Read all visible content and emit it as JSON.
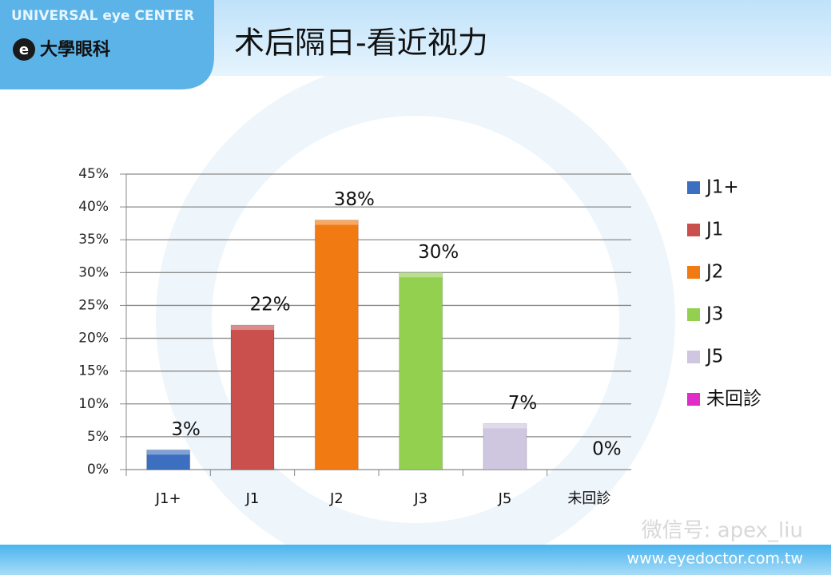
{
  "slide": {
    "brand": "UNIVERSAL eye CENTER",
    "logo_text": "大學眼科",
    "watermark": "微信号: apex_liu",
    "footer": "www.eyedoctor.com.tw"
  },
  "chart_data": {
    "type": "bar",
    "title": "术后隔日-看近视力",
    "categories": [
      "J1+",
      "J1",
      "J2",
      "J3",
      "J5",
      "未回診"
    ],
    "values": [
      3,
      22,
      38,
      30,
      7,
      0
    ],
    "value_labels": [
      "3%",
      "22%",
      "38%",
      "30%",
      "7%",
      "0%"
    ],
    "colors": [
      "#3c6fc0",
      "#c9504d",
      "#f27a12",
      "#94d050",
      "#cfc6e0",
      "#e02cc8"
    ],
    "ylim": [
      0,
      45
    ],
    "yticks": [
      {
        "value": 0,
        "label": "0%"
      },
      {
        "value": 5,
        "label": "5%"
      },
      {
        "value": 10,
        "label": "10%"
      },
      {
        "value": 15,
        "label": "15%"
      },
      {
        "value": 20,
        "label": "20%"
      },
      {
        "value": 25,
        "label": "25%"
      },
      {
        "value": 30,
        "label": "30%"
      },
      {
        "value": 35,
        "label": "35%"
      },
      {
        "value": 40,
        "label": "40%"
      },
      {
        "value": 45,
        "label": "45%"
      }
    ],
    "grid": true,
    "legend": "right"
  }
}
